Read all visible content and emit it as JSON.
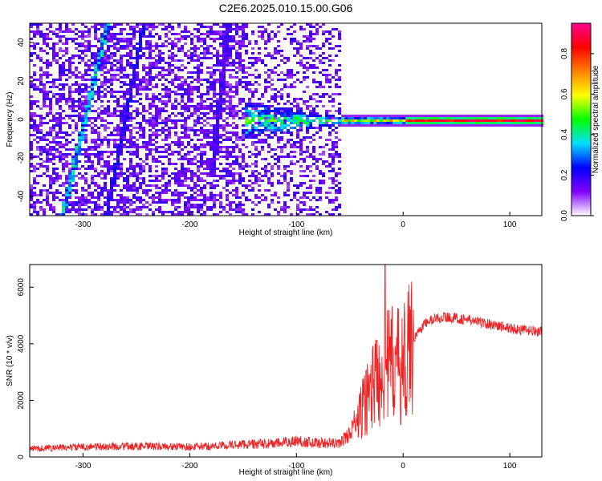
{
  "title": "C2E6.2025.010.15.00.G06",
  "chart_data": [
    {
      "type": "heatmap",
      "xlabel": "Height of straight line (km)",
      "ylabel": "Frequency (Hz)",
      "xlim": [
        -350,
        130
      ],
      "ylim": [
        -50,
        50
      ],
      "xticks": [
        -300,
        -200,
        -100,
        0,
        100
      ],
      "yticks": [
        -40,
        -20,
        0,
        20,
        40
      ],
      "colorbar": {
        "label": "Normalized spectral amplitude",
        "range": [
          0,
          0.95
        ],
        "ticks": [
          0,
          0.2,
          0.4,
          0.6,
          0.8
        ],
        "colors": [
          "#ffffff",
          "#8000ff",
          "#0000ff",
          "#00e0ff",
          "#00ff00",
          "#ffff00",
          "#ff8000",
          "#ff0000",
          "#ff0090"
        ]
      },
      "features": [
        {
          "name": "",
          "x_start": -350,
          "x_end": 130,
          "note": "scattered noise"
        },
        {
          "name": "",
          "x": -300,
          "note": "diagonal stripe"
        },
        {
          "name": "",
          "x_start": -60,
          "x_end": 130,
          "frequency": 0,
          "amplitude": 0.9
        }
      ]
    },
    {
      "type": "line",
      "xlabel": "Height of straight line (km)",
      "ylabel": "SNR (10 * v/v)",
      "xlim": [
        -350,
        130
      ],
      "ylim": [
        0,
        6800
      ],
      "xticks": [
        -300,
        -200,
        -100,
        0,
        100
      ],
      "yticks": [
        0,
        2000,
        4000,
        6000
      ],
      "color": "#ee2222",
      "envelope": {
        "x": [
          -350,
          -300,
          -250,
          -200,
          -180,
          -150,
          -120,
          -100,
          -80,
          -60,
          -50,
          -40,
          -30,
          -20,
          -10,
          0,
          10,
          20,
          30,
          40,
          60,
          80,
          100,
          130
        ],
        "y": [
          250,
          300,
          320,
          300,
          320,
          380,
          400,
          480,
          420,
          400,
          700,
          1500,
          2500,
          3000,
          3300,
          3200,
          4200,
          4700,
          4900,
          4950,
          4850,
          4700,
          4550,
          4400
        ]
      },
      "peak": {
        "x": -17,
        "y": 6800
      }
    }
  ]
}
